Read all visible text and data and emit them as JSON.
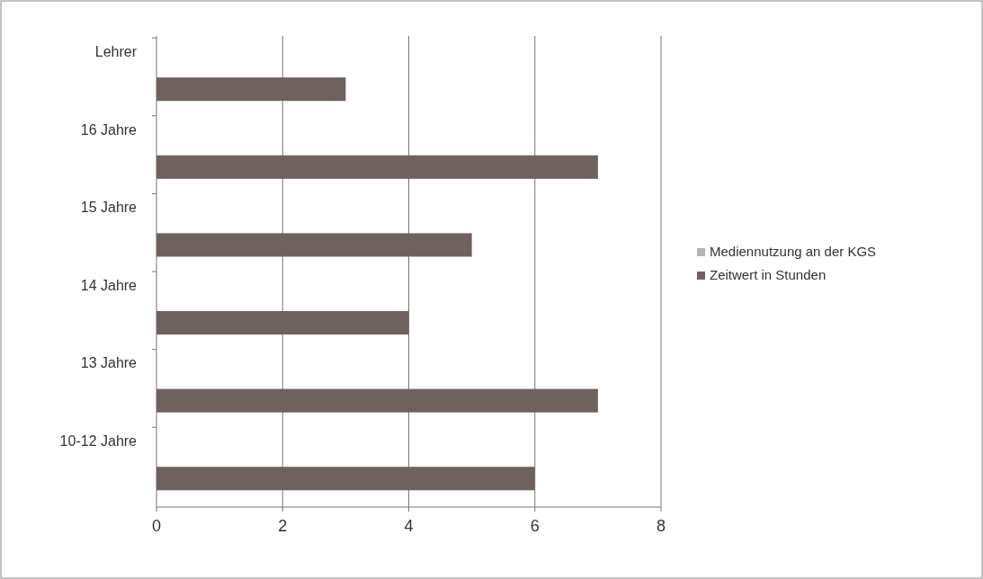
{
  "chart_data": {
    "type": "bar",
    "orientation": "horizontal",
    "categories": [
      "Lehrer",
      "16 Jahre",
      "15 Jahre",
      "14 Jahre",
      "13 Jahre",
      "10-12 Jahre"
    ],
    "series": [
      {
        "name": "Mediennutzung an der KGS",
        "color": "#b4b4b4",
        "values": [
          null,
          null,
          null,
          null,
          null,
          null
        ]
      },
      {
        "name": "Zeitwert in Stunden",
        "color": "#6f625e",
        "values": [
          3,
          7,
          5,
          4,
          7,
          6
        ]
      }
    ],
    "xlim": [
      0,
      8
    ],
    "xticks": [
      0,
      2,
      4,
      6,
      8
    ],
    "grid": "x",
    "legend": "right"
  }
}
